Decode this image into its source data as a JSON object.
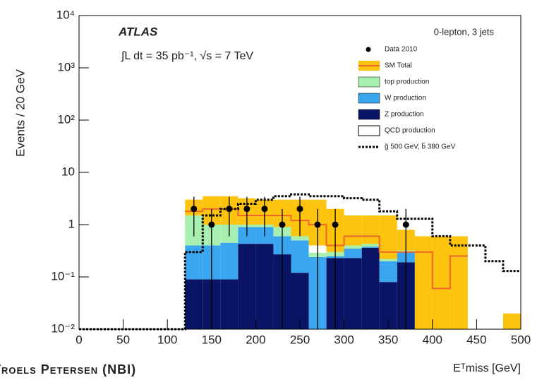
{
  "chart_data": {
    "type": "histogram",
    "experiment": "ATLAS",
    "luminosity": "∫L dt = 35 pb⁻¹, √s = 7 TeV",
    "selection": "0-lepton, 3 jets",
    "ylabel": "Events / 20 GeV",
    "xlabel": "Eᵀmiss [GeV]",
    "footer": "Troels Petersen (NBI)",
    "log_y": true,
    "xlim": [
      0,
      500
    ],
    "xticks": [
      0,
      50,
      100,
      150,
      200,
      250,
      300,
      350,
      400,
      450,
      500
    ],
    "ylim": [
      0.01,
      10000
    ],
    "yticks": [
      {
        "value": 0.01,
        "label": "10⁻²"
      },
      {
        "value": 0.1,
        "label": "10⁻¹"
      },
      1,
      10,
      {
        "value": 100,
        "label": "10²"
      },
      {
        "value": 1000,
        "label": "10³"
      },
      {
        "value": 10000,
        "label": "10⁴"
      }
    ],
    "bins": [
      0,
      20,
      40,
      60,
      80,
      100,
      120,
      140,
      160,
      180,
      200,
      220,
      240,
      260,
      280,
      300,
      320,
      340,
      360,
      380,
      400,
      420,
      440,
      460,
      480,
      500
    ],
    "series": [
      {
        "name": "Z production",
        "color": "#0a1464",
        "values": [
          null,
          null,
          null,
          null,
          null,
          null,
          0.09,
          0.09,
          0.09,
          0.43,
          0.43,
          0.27,
          0.12,
          null,
          0.23,
          0.23,
          0.36,
          0.08,
          0.19,
          null,
          null,
          null,
          null,
          null,
          null
        ]
      },
      {
        "name": "W production",
        "color": "#3aa6f0",
        "values": [
          null,
          null,
          null,
          null,
          null,
          null,
          0.31,
          0.31,
          0.36,
          0.47,
          0.47,
          0.33,
          0.38,
          0.24,
          0.02,
          0.12,
          0.02,
          0.12,
          0.11,
          null,
          null,
          null,
          null,
          null,
          null
        ]
      },
      {
        "name": "top production",
        "color": "#a8f0b0",
        "values": [
          null,
          null,
          null,
          null,
          null,
          null,
          1.1,
          0.6,
          0.55,
          0.1,
          0.1,
          0.3,
          0.1,
          0.05,
          0.05,
          0.05,
          0.05,
          0.02,
          0.02,
          null,
          null,
          null,
          null,
          null,
          null
        ]
      }
    ],
    "sm_total": {
      "name": "SM Total",
      "color": "#f0662a",
      "band_color": "#fdc40f",
      "values": [
        null,
        null,
        null,
        null,
        null,
        null,
        1.8,
        2,
        2,
        1.5,
        1.5,
        1.5,
        1.2,
        1,
        0.4,
        0.6,
        0.6,
        0.3,
        0.3,
        0.3,
        0.06,
        0.25,
        null,
        null,
        null
      ],
      "high": [
        null,
        null,
        null,
        null,
        null,
        null,
        3,
        3.5,
        3.5,
        3.2,
        3,
        3,
        3,
        3,
        2,
        1.5,
        1.5,
        1.5,
        0.8,
        0.6,
        0.6,
        0.6,
        null,
        null,
        0.02
      ],
      "low": [
        null,
        null,
        null,
        null,
        null,
        null,
        1,
        1,
        1,
        0.8,
        0.8,
        0.8,
        0.6,
        0.4,
        0.2,
        0.3,
        0.3,
        0.15,
        0.15,
        0.01,
        0.01,
        0.01,
        null,
        null,
        0.01
      ]
    },
    "qcd": {
      "name": "QCD production"
    },
    "signal": {
      "name": "g̃ 500 GeV, b̃ 380 GeV",
      "color": "#000000",
      "values": [
        0.01,
        0.01,
        0.01,
        0.01,
        0.01,
        0.01,
        0.3,
        1.5,
        2,
        2.5,
        3,
        3.5,
        3.8,
        3.5,
        3.5,
        3.2,
        3,
        1.8,
        1.3,
        1.3,
        0.6,
        0.4,
        0.4,
        0.2,
        0.13
      ]
    },
    "data": {
      "name": "Data 2010",
      "color": "#000000",
      "x": [
        130,
        150,
        170,
        190,
        210,
        230,
        250,
        270,
        290,
        370
      ],
      "values": [
        2,
        1,
        2,
        2,
        2,
        1,
        2,
        1,
        1,
        1
      ],
      "errors": [
        1.4,
        1,
        1.4,
        1.4,
        1.4,
        1,
        1.4,
        1,
        1,
        1
      ]
    }
  }
}
